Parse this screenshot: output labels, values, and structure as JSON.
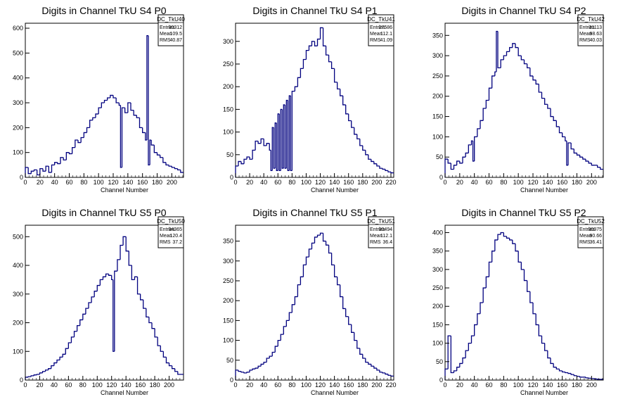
{
  "chart_data": [
    {
      "type": "bar",
      "title": "Digits in Channel TkU S4 P0",
      "xlabel": "Channel Number",
      "ylabel": "",
      "xlim": [
        0,
        216
      ],
      "ylim": [
        0,
        620
      ],
      "xticks": [
        0,
        20,
        40,
        60,
        80,
        100,
        120,
        140,
        160,
        180,
        200
      ],
      "yticks": [
        0,
        100,
        200,
        300,
        400,
        500,
        600
      ],
      "stats": {
        "name": "DC_TkU40",
        "entries": "30312",
        "mean": "109.5",
        "rms": "40.87"
      },
      "x": [
        0,
        4,
        8,
        12,
        16,
        20,
        24,
        28,
        32,
        36,
        40,
        44,
        48,
        52,
        56,
        60,
        64,
        68,
        72,
        76,
        80,
        84,
        88,
        92,
        96,
        100,
        104,
        108,
        112,
        116,
        120,
        124,
        128,
        130,
        132,
        136,
        140,
        144,
        148,
        152,
        156,
        160,
        164,
        166,
        168,
        170,
        172,
        176,
        180,
        184,
        188,
        192,
        196,
        200,
        204,
        208,
        212
      ],
      "y": [
        40,
        15,
        25,
        30,
        10,
        35,
        25,
        45,
        20,
        50,
        60,
        55,
        80,
        70,
        100,
        95,
        120,
        150,
        140,
        160,
        180,
        200,
        230,
        240,
        255,
        280,
        300,
        310,
        320,
        330,
        320,
        300,
        290,
        40,
        280,
        260,
        300,
        270,
        250,
        240,
        200,
        180,
        150,
        570,
        50,
        150,
        130,
        100,
        90,
        80,
        60,
        50,
        45,
        40,
        35,
        30,
        20
      ]
    },
    {
      "type": "bar",
      "title": "Digits in Channel TkU S4 P1",
      "xlabel": "Channel Number",
      "ylabel": "",
      "xlim": [
        0,
        224
      ],
      "ylim": [
        0,
        340
      ],
      "xticks": [
        0,
        20,
        40,
        60,
        80,
        100,
        120,
        140,
        160,
        180,
        200,
        220
      ],
      "yticks": [
        0,
        50,
        100,
        150,
        200,
        250,
        300
      ],
      "stats": {
        "name": "DC_TkU41",
        "entries": "27586",
        "mean": "112.1",
        "rms": "41.09"
      },
      "x": [
        0,
        4,
        8,
        12,
        16,
        20,
        24,
        28,
        32,
        36,
        40,
        44,
        48,
        50,
        52,
        54,
        56,
        58,
        60,
        62,
        64,
        66,
        68,
        70,
        72,
        74,
        76,
        78,
        80,
        84,
        88,
        92,
        96,
        100,
        104,
        108,
        112,
        116,
        120,
        124,
        128,
        132,
        136,
        140,
        144,
        148,
        152,
        156,
        160,
        164,
        168,
        172,
        176,
        180,
        184,
        188,
        192,
        196,
        200,
        204,
        208,
        212,
        216,
        220
      ],
      "y": [
        25,
        35,
        30,
        40,
        45,
        40,
        60,
        80,
        75,
        85,
        70,
        75,
        60,
        15,
        110,
        20,
        120,
        15,
        140,
        15,
        150,
        20,
        160,
        20,
        170,
        15,
        180,
        15,
        190,
        200,
        220,
        240,
        260,
        280,
        290,
        300,
        290,
        305,
        330,
        290,
        270,
        255,
        240,
        210,
        195,
        180,
        160,
        140,
        125,
        110,
        95,
        85,
        70,
        60,
        50,
        40,
        35,
        30,
        25,
        20,
        18,
        15,
        12,
        10
      ]
    },
    {
      "type": "bar",
      "title": "Digits in Channel TkU S4 P2",
      "xlabel": "Channel Number",
      "ylabel": "",
      "xlim": [
        0,
        216
      ],
      "ylim": [
        0,
        380
      ],
      "xticks": [
        0,
        20,
        40,
        60,
        80,
        100,
        120,
        140,
        160,
        180,
        200
      ],
      "yticks": [
        0,
        50,
        100,
        150,
        200,
        250,
        300,
        350
      ],
      "stats": {
        "name": "DC_TkU42",
        "entries": "31113",
        "mean": "98.63",
        "rms": "40.03"
      },
      "x": [
        0,
        4,
        8,
        12,
        16,
        20,
        24,
        28,
        32,
        36,
        38,
        40,
        44,
        48,
        52,
        56,
        60,
        64,
        68,
        70,
        72,
        76,
        80,
        84,
        88,
        92,
        96,
        100,
        104,
        108,
        112,
        116,
        120,
        124,
        128,
        132,
        136,
        140,
        144,
        148,
        152,
        156,
        160,
        164,
        166,
        168,
        172,
        176,
        180,
        184,
        188,
        192,
        196,
        200,
        204,
        208,
        212
      ],
      "y": [
        45,
        35,
        20,
        30,
        40,
        35,
        50,
        60,
        80,
        90,
        40,
        100,
        120,
        140,
        170,
        190,
        220,
        250,
        260,
        360,
        270,
        290,
        300,
        310,
        320,
        330,
        320,
        300,
        290,
        280,
        270,
        250,
        240,
        230,
        210,
        195,
        180,
        170,
        150,
        140,
        125,
        110,
        100,
        90,
        30,
        85,
        70,
        60,
        55,
        50,
        45,
        40,
        35,
        30,
        30,
        25,
        20
      ]
    },
    {
      "type": "bar",
      "title": "Digits in Channel TkU S5 P0",
      "xlabel": "Channel Number",
      "ylabel": "",
      "xlim": [
        0,
        220
      ],
      "ylim": [
        0,
        540
      ],
      "xticks": [
        0,
        20,
        40,
        60,
        80,
        100,
        120,
        140,
        160,
        180,
        200
      ],
      "yticks": [
        0,
        100,
        200,
        300,
        400,
        500
      ],
      "stats": {
        "name": "DC_TkU50",
        "entries": "34365",
        "mean": "120.4",
        "rms": "37.2"
      },
      "x": [
        0,
        4,
        8,
        12,
        16,
        20,
        24,
        28,
        32,
        36,
        40,
        44,
        48,
        52,
        56,
        60,
        64,
        68,
        72,
        76,
        80,
        84,
        88,
        92,
        96,
        100,
        104,
        108,
        112,
        116,
        120,
        122,
        124,
        128,
        132,
        136,
        140,
        144,
        148,
        152,
        156,
        160,
        164,
        168,
        172,
        176,
        180,
        184,
        188,
        192,
        196,
        200,
        204,
        208,
        212
      ],
      "y": [
        10,
        12,
        15,
        18,
        20,
        25,
        30,
        35,
        40,
        50,
        60,
        70,
        80,
        90,
        110,
        130,
        150,
        170,
        190,
        210,
        230,
        250,
        270,
        290,
        310,
        330,
        350,
        360,
        370,
        365,
        350,
        100,
        380,
        420,
        470,
        500,
        450,
        400,
        350,
        360,
        300,
        280,
        250,
        220,
        200,
        180,
        150,
        120,
        100,
        80,
        60,
        50,
        40,
        30,
        20
      ]
    },
    {
      "type": "line",
      "title": "Digits in Channel TkU S5 P1",
      "xlabel": "Channel Number",
      "ylabel": "",
      "xlim": [
        0,
        224
      ],
      "ylim": [
        0,
        390
      ],
      "xticks": [
        0,
        20,
        40,
        60,
        80,
        100,
        120,
        140,
        160,
        180,
        200,
        220
      ],
      "yticks": [
        0,
        50,
        100,
        150,
        200,
        250,
        300,
        350
      ],
      "stats": {
        "name": "DC_TkU51",
        "entries": "30494",
        "mean": "112.1",
        "rms": "36.4"
      },
      "x": [
        0,
        4,
        8,
        12,
        16,
        20,
        24,
        28,
        32,
        36,
        40,
        44,
        48,
        52,
        56,
        60,
        64,
        68,
        72,
        76,
        80,
        84,
        88,
        92,
        96,
        100,
        104,
        108,
        112,
        116,
        120,
        124,
        128,
        132,
        136,
        140,
        144,
        148,
        152,
        156,
        160,
        164,
        168,
        172,
        176,
        180,
        184,
        188,
        192,
        196,
        200,
        204,
        208,
        212,
        216,
        220
      ],
      "y": [
        25,
        22,
        20,
        18,
        20,
        25,
        28,
        30,
        35,
        40,
        45,
        55,
        60,
        70,
        85,
        100,
        115,
        135,
        150,
        170,
        190,
        210,
        240,
        260,
        290,
        310,
        330,
        345,
        360,
        365,
        370,
        350,
        340,
        320,
        290,
        260,
        240,
        210,
        180,
        160,
        140,
        120,
        100,
        80,
        65,
        55,
        45,
        40,
        35,
        30,
        25,
        20,
        18,
        15,
        12,
        10
      ]
    },
    {
      "type": "line",
      "title": "Digits in Channel TkU S5 P2",
      "xlabel": "Channel Number",
      "ylabel": "",
      "xlim": [
        0,
        216
      ],
      "ylim": [
        0,
        420
      ],
      "xticks": [
        0,
        20,
        40,
        60,
        80,
        100,
        120,
        140,
        160,
        180,
        200
      ],
      "yticks": [
        0,
        50,
        100,
        150,
        200,
        250,
        300,
        350,
        400
      ],
      "stats": {
        "name": "DC_TkU52",
        "entries": "30975",
        "mean": "90.66",
        "rms": "36.41"
      },
      "x": [
        0,
        4,
        8,
        12,
        16,
        20,
        24,
        28,
        32,
        36,
        40,
        44,
        48,
        52,
        56,
        60,
        64,
        68,
        72,
        76,
        80,
        84,
        88,
        92,
        96,
        100,
        104,
        108,
        112,
        116,
        120,
        124,
        128,
        132,
        136,
        140,
        144,
        148,
        152,
        156,
        160,
        164,
        168,
        172,
        176,
        180,
        184,
        188,
        192,
        196,
        200,
        204,
        208,
        212
      ],
      "y": [
        30,
        120,
        20,
        25,
        35,
        45,
        60,
        80,
        100,
        120,
        150,
        180,
        210,
        250,
        280,
        320,
        350,
        380,
        395,
        400,
        390,
        385,
        380,
        370,
        350,
        320,
        300,
        270,
        240,
        210,
        180,
        150,
        120,
        100,
        80,
        60,
        45,
        35,
        30,
        25,
        22,
        20,
        18,
        15,
        12,
        10,
        8,
        8,
        6,
        5,
        4,
        3,
        2,
        2
      ]
    }
  ]
}
